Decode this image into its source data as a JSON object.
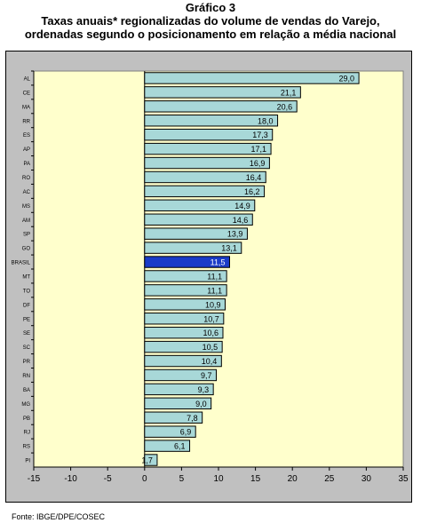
{
  "header": {
    "title": "Gráfico 3",
    "subtitle_line1": "Taxas anuais* regionalizadas  do volume de vendas do Varejo,",
    "subtitle_line2": "ordenadas segundo o posicionamento em relação a média nacional"
  },
  "footer": {
    "source": "Fonte: IBGE/DPE/COSEC"
  },
  "colors": {
    "plot_background": "#ffffcc",
    "frame_background": "#c0c0c0",
    "bar_fill": "#a8d8d8",
    "highlight_fill": "#1a3cc8",
    "bar_stroke": "#000000"
  },
  "chart_data": {
    "type": "bar",
    "orientation": "horizontal",
    "highlight_category": "BRASIL",
    "xlim": [
      -15,
      35
    ],
    "xticks": [
      "-15",
      "-10",
      "-5",
      "0",
      "5",
      "10",
      "15",
      "20",
      "25",
      "30",
      "35"
    ],
    "grid": false,
    "legend": "none",
    "categories": [
      "AL",
      "CE",
      "MA",
      "RR",
      "ES",
      "AP",
      "PA",
      "RO",
      "AC",
      "MS",
      "AM",
      "SP",
      "GO",
      "BRASIL",
      "MT",
      "TO",
      "DF",
      "PE",
      "SE",
      "SC",
      "PR",
      "RN",
      "BA",
      "MG",
      "PB",
      "RJ",
      "RS",
      "PI"
    ],
    "values": [
      29.0,
      21.1,
      20.6,
      18.0,
      17.3,
      17.1,
      16.9,
      16.4,
      16.2,
      14.9,
      14.6,
      13.9,
      13.1,
      11.5,
      11.1,
      11.1,
      10.9,
      10.7,
      10.6,
      10.5,
      10.4,
      9.7,
      9.3,
      9.0,
      7.8,
      6.9,
      6.1,
      1.7
    ],
    "value_labels": [
      "29,0",
      "21,1",
      "20,6",
      "18,0",
      "17,3",
      "17,1",
      "16,9",
      "16,4",
      "16,2",
      "14,9",
      "14,6",
      "13,9",
      "13,1",
      "11,5",
      "11,1",
      "11,1",
      "10,9",
      "10,7",
      "10,6",
      "10,5",
      "10,4",
      "9,7",
      "9,3",
      "9,0",
      "7,8",
      "6,9",
      "6,1",
      "1,7"
    ]
  }
}
